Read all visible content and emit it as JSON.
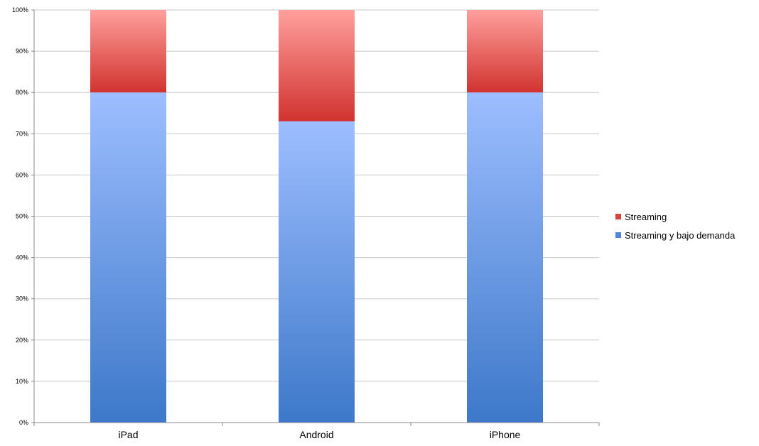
{
  "chart_data": {
    "type": "bar",
    "stacked": true,
    "categories": [
      "iPad",
      "Android",
      "iPhone"
    ],
    "series": [
      {
        "name": "Streaming y bajo demanda",
        "values": [
          80,
          73,
          80
        ],
        "color": "#4f86d8",
        "color_top": "#9dbeff",
        "color_bottom": "#3d78c9"
      },
      {
        "name": "Streaming",
        "values": [
          20,
          27,
          20
        ],
        "color": "#d9413d",
        "color_top": "#ff9f9c",
        "color_bottom": "#d1332f"
      }
    ],
    "yticks": [
      "0%",
      "10%",
      "20%",
      "30%",
      "40%",
      "50%",
      "60%",
      "70%",
      "80%",
      "90%",
      "100%"
    ],
    "ylim": [
      0,
      100
    ],
    "grid": true,
    "legend_position": "right",
    "title": "",
    "xlabel": "",
    "ylabel": ""
  },
  "legend": {
    "items": [
      {
        "label": "Streaming",
        "color": "#d9413d"
      },
      {
        "label": "Streaming y bajo demanda",
        "color": "#4f86d8"
      }
    ]
  }
}
